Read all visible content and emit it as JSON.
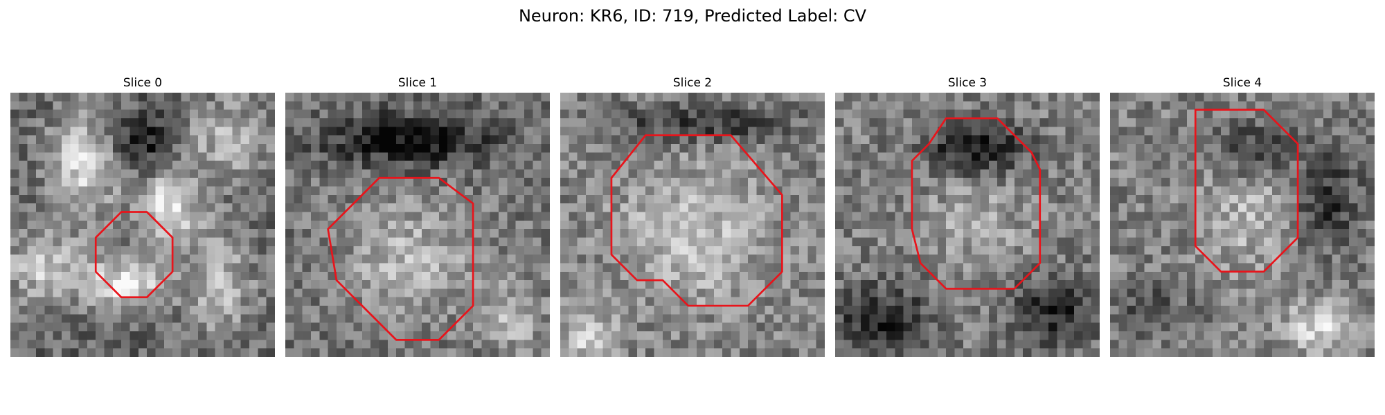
{
  "figure": {
    "title": "Neuron: KR6, ID: 719, Predicted Label: CV"
  },
  "contour_color": "#e8141b",
  "panels": [
    {
      "title": "Slice 0",
      "contour": [
        [
          13,
          14
        ],
        [
          16,
          14
        ],
        [
          19,
          17
        ],
        [
          19,
          21
        ],
        [
          16,
          24
        ],
        [
          13,
          24
        ],
        [
          10,
          21
        ],
        [
          10,
          17
        ]
      ],
      "blobs": [
        {
          "cx": 8,
          "cy": 8,
          "rx": 4,
          "ry": 6,
          "v": 0.85
        },
        {
          "cx": 18,
          "cy": 13,
          "rx": 4,
          "ry": 4,
          "v": 0.9
        },
        {
          "cx": 13,
          "cy": 22,
          "rx": 5,
          "ry": 3,
          "v": 0.95
        },
        {
          "cx": 4,
          "cy": 20,
          "rx": 5,
          "ry": 4,
          "v": 0.8
        },
        {
          "cx": 24,
          "cy": 22,
          "rx": 4,
          "ry": 6,
          "v": 0.75
        },
        {
          "cx": 25,
          "cy": 5,
          "rx": 5,
          "ry": 5,
          "v": 0.7
        },
        {
          "cx": 15,
          "cy": 5,
          "rx": 3,
          "ry": 3,
          "v": 0.1
        }
      ],
      "base": 0.4,
      "noise": 0.35
    },
    {
      "title": "Slice 1",
      "contour": [
        [
          11,
          10
        ],
        [
          18,
          10
        ],
        [
          22,
          13
        ],
        [
          22,
          25
        ],
        [
          18,
          29
        ],
        [
          13,
          29
        ],
        [
          8,
          24
        ],
        [
          6,
          22
        ],
        [
          5,
          16
        ],
        [
          9,
          12
        ]
      ],
      "blobs": [
        {
          "cx": 14,
          "cy": 19,
          "rx": 8,
          "ry": 7,
          "v": 0.7
        },
        {
          "cx": 14,
          "cy": 5,
          "rx": 10,
          "ry": 3,
          "v": 0.05
        },
        {
          "cx": 26,
          "cy": 26,
          "rx": 4,
          "ry": 4,
          "v": 0.7
        }
      ],
      "base": 0.45,
      "noise": 0.35
    },
    {
      "title": "Slice 2",
      "contour": [
        [
          10,
          5
        ],
        [
          20,
          5
        ],
        [
          26,
          12
        ],
        [
          26,
          21
        ],
        [
          22,
          25
        ],
        [
          15,
          25
        ],
        [
          12,
          22
        ],
        [
          9,
          22
        ],
        [
          6,
          19
        ],
        [
          6,
          10
        ]
      ],
      "blobs": [
        {
          "cx": 15,
          "cy": 16,
          "rx": 9,
          "ry": 8,
          "v": 0.75
        },
        {
          "cx": 16,
          "cy": 3,
          "rx": 10,
          "ry": 2,
          "v": 0.2
        },
        {
          "cx": 3,
          "cy": 28,
          "rx": 3,
          "ry": 3,
          "v": 0.85
        }
      ],
      "base": 0.5,
      "noise": 0.35
    },
    {
      "title": "Slice 3",
      "contour": [
        [
          13,
          3
        ],
        [
          19,
          3
        ],
        [
          23,
          7
        ],
        [
          24,
          9
        ],
        [
          24,
          20
        ],
        [
          21,
          23
        ],
        [
          13,
          23
        ],
        [
          10,
          20
        ],
        [
          9,
          16
        ],
        [
          9,
          8
        ],
        [
          11,
          6
        ]
      ],
      "blobs": [
        {
          "cx": 16,
          "cy": 15,
          "rx": 6,
          "ry": 6,
          "v": 0.65
        },
        {
          "cx": 16,
          "cy": 6,
          "rx": 6,
          "ry": 3,
          "v": 0.1
        },
        {
          "cx": 5,
          "cy": 26,
          "rx": 6,
          "ry": 4,
          "v": 0.15
        },
        {
          "cx": 25,
          "cy": 25,
          "rx": 5,
          "ry": 4,
          "v": 0.15
        }
      ],
      "base": 0.5,
      "noise": 0.35
    },
    {
      "title": "Slice 4",
      "contour": [
        [
          10,
          2
        ],
        [
          18,
          2
        ],
        [
          22,
          6
        ],
        [
          22,
          17
        ],
        [
          18,
          21
        ],
        [
          13,
          21
        ],
        [
          10,
          18
        ],
        [
          10,
          6
        ]
      ],
      "blobs": [
        {
          "cx": 16,
          "cy": 14,
          "rx": 6,
          "ry": 7,
          "v": 0.7
        },
        {
          "cx": 16,
          "cy": 6,
          "rx": 5,
          "ry": 3,
          "v": 0.25
        },
        {
          "cx": 25,
          "cy": 12,
          "rx": 4,
          "ry": 6,
          "v": 0.2
        },
        {
          "cx": 24,
          "cy": 27,
          "rx": 4,
          "ry": 3,
          "v": 0.85
        },
        {
          "cx": 4,
          "cy": 25,
          "rx": 5,
          "ry": 3,
          "v": 0.3
        }
      ],
      "base": 0.5,
      "noise": 0.35
    }
  ]
}
